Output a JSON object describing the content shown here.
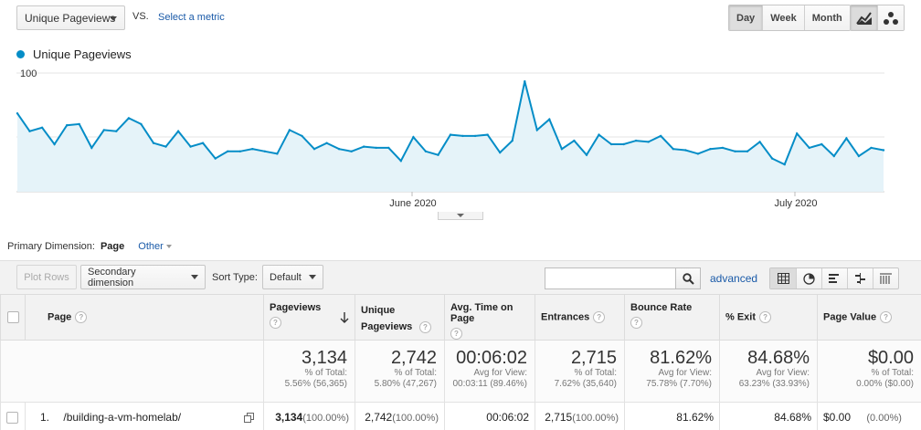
{
  "controls": {
    "metric_select": "Unique Pageviews",
    "vs_label": "VS.",
    "select_metric": "Select a metric",
    "period_day": "Day",
    "period_week": "Week",
    "period_month": "Month",
    "chart_type_line_icon": "line-chart-icon",
    "chart_type_motion_icon": "motion-chart-icon"
  },
  "chart_data": {
    "type": "area",
    "series": [
      {
        "name": "Unique Pageviews",
        "color": "#058dc7",
        "values": [
          66,
          51,
          54,
          40,
          56,
          57,
          37,
          52,
          51,
          62,
          57,
          41,
          38,
          51,
          38,
          41,
          28,
          34,
          34,
          36,
          34,
          32,
          52,
          47,
          36,
          41,
          36,
          34,
          38,
          37,
          37,
          26,
          46,
          34,
          31,
          48,
          47,
          47,
          48,
          33,
          43,
          93,
          52,
          61,
          36,
          43,
          31,
          48,
          40,
          40,
          43,
          42,
          47,
          36,
          35,
          32,
          36,
          37,
          34,
          34,
          42,
          28,
          23,
          49,
          37,
          40,
          30,
          45,
          30,
          37,
          35
        ]
      }
    ],
    "x_ticks": [
      "June 2020",
      "July 2020"
    ],
    "y_ticks": [
      100,
      50
    ],
    "ylim": [
      0,
      100
    ],
    "grid": true
  },
  "dimension": {
    "label": "Primary Dimension:",
    "current": "Page",
    "other": "Other"
  },
  "toolbar": {
    "plot_rows": "Plot Rows",
    "secondary_dimension": "Secondary dimension",
    "sort_type_label": "Sort Type:",
    "sort_type_value": "Default",
    "search_placeholder": "",
    "advanced": "advanced"
  },
  "table": {
    "headers": {
      "page": "Page",
      "pageviews": "Pageviews",
      "unique_pageviews": "Unique Pageviews",
      "avg_time": "Avg. Time on Page",
      "entrances": "Entrances",
      "bounce_rate": "Bounce Rate",
      "exit": "% Exit",
      "page_value": "Page Value"
    },
    "totals": {
      "pageviews": {
        "value": "3,134",
        "line1": "% of Total:",
        "line2": "5.56% (56,365)"
      },
      "unique_pageviews": {
        "value": "2,742",
        "line1": "% of Total:",
        "line2": "5.80% (47,267)"
      },
      "avg_time": {
        "value": "00:06:02",
        "line1": "Avg for View:",
        "line2": "00:03:11 (89.46%)"
      },
      "entrances": {
        "value": "2,715",
        "line1": "% of Total:",
        "line2": "7.62% (35,640)"
      },
      "bounce_rate": {
        "value": "81.62%",
        "line1": "Avg for View:",
        "line2": "75.78% (7.70%)"
      },
      "exit": {
        "value": "84.68%",
        "line1": "Avg for View:",
        "line2": "63.23% (33.93%)"
      },
      "page_value": {
        "value": "$0.00",
        "line1": "% of Total:",
        "line2": "0.00% ($0.00)"
      }
    },
    "rows": [
      {
        "index": "1.",
        "page": "/building-a-vm-homelab/",
        "pageviews": "3,134",
        "pageviews_pct": "(100.00%)",
        "unique_pageviews": "2,742",
        "unique_pageviews_pct": "(100.00%)",
        "avg_time": "00:06:02",
        "entrances": "2,715",
        "entrances_pct": "(100.00%)",
        "bounce_rate": "81.62%",
        "exit": "84.68%",
        "page_value": "$0.00",
        "page_value_pct": "(0.00%)"
      }
    ]
  }
}
